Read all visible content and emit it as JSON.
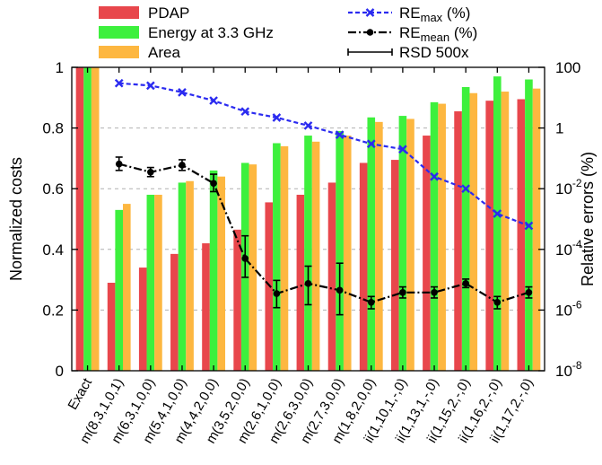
{
  "chart_data": {
    "type": "bar",
    "categories": [
      "Exact",
      "m(8,3,1,0,1)",
      "m(6,3,1,0,0)",
      "m(5,4,1,0,0)",
      "m(4,4,2,0,0)",
      "m(3,5,2,0,0)",
      "m(2,6,1,0,0)",
      "m(2,6,3,0,0)",
      "m(2,7,3,0,0)",
      "m(1,8,2,0,0)",
      "ii(1,10,1,-,0)",
      "ii(1,13,1,-,0)",
      "ii(1,15,2,-,0)",
      "ii(1,16,2,-,0)",
      "ii(1,17,2,-,0)"
    ],
    "ylabel": "Normalized costs",
    "y2label": "Relative errors (%)",
    "ylim": [
      0,
      1
    ],
    "y2lim": [
      1e-08,
      100
    ],
    "y2scale": "log",
    "yticks": [
      "0",
      "0.2",
      "0.4",
      "0.6",
      "0.8",
      "1"
    ],
    "y2ticks": [
      {
        "base": "10",
        "exp": "-8"
      },
      {
        "base": "10",
        "exp": "-6"
      },
      {
        "base": "10",
        "exp": "-4"
      },
      {
        "base": "10",
        "exp": "-2"
      },
      {
        "base": "1",
        "exp": ""
      },
      {
        "base": "100",
        "exp": ""
      }
    ],
    "y2tick_values": [
      1e-08,
      1e-06,
      0.0001,
      0.01,
      1,
      100
    ],
    "grid": "horizontal dashed",
    "legend_placement": "top",
    "bar_series": [
      {
        "name": "PDAP",
        "color": "#e8474c",
        "values": [
          1.0,
          0.29,
          0.34,
          0.385,
          0.42,
          0.465,
          0.555,
          0.58,
          0.62,
          0.685,
          0.695,
          0.775,
          0.855,
          0.89,
          0.895
        ]
      },
      {
        "name": "Energy at 3.3 GHz",
        "color": "#3df03d",
        "values": [
          1.0,
          0.53,
          0.58,
          0.62,
          0.66,
          0.685,
          0.75,
          0.775,
          0.79,
          0.835,
          0.84,
          0.885,
          0.935,
          0.97,
          0.96
        ]
      },
      {
        "name": "Area",
        "color": "#fdb740",
        "values": [
          1.0,
          0.55,
          0.58,
          0.625,
          0.64,
          0.68,
          0.74,
          0.755,
          0.775,
          0.82,
          0.83,
          0.88,
          0.915,
          0.92,
          0.93
        ]
      }
    ],
    "line_series": [
      {
        "name": "RE",
        "subscript": "max",
        "suffix": " (%)",
        "color": "#2b2bf0",
        "values": [
          null,
          30,
          25,
          15,
          8,
          3.5,
          2.2,
          1.2,
          0.6,
          0.3,
          0.2,
          0.025,
          0.01,
          0.0015,
          0.0006
        ]
      },
      {
        "name": "RE",
        "subscript": "mean",
        "suffix": " (%)",
        "color": "#000000",
        "values": [
          null,
          0.065,
          0.035,
          0.06,
          0.015,
          5e-05,
          3.5e-06,
          7.5e-06,
          4.5e-06,
          1.8e-06,
          3.8e-06,
          3.8e-06,
          7.5e-06,
          1.8e-06,
          3.8e-06
        ],
        "error_low": [
          null,
          0.04,
          0.025,
          0.04,
          0.008,
          1.2e-05,
          1.2e-06,
          1.5e-06,
          7e-07,
          1.1e-06,
          2.5e-06,
          2.5e-06,
          5.5e-06,
          1.1e-06,
          2.5e-06
        ],
        "error_high": [
          null,
          0.11,
          0.05,
          0.09,
          0.03,
          0.00028,
          9.5e-06,
          2.8e-05,
          3.5e-05,
          2.8e-06,
          5.8e-06,
          5.8e-06,
          1.05e-05,
          2.8e-06,
          5.8e-06
        ]
      }
    ],
    "error_legend": "RSD 500x"
  }
}
